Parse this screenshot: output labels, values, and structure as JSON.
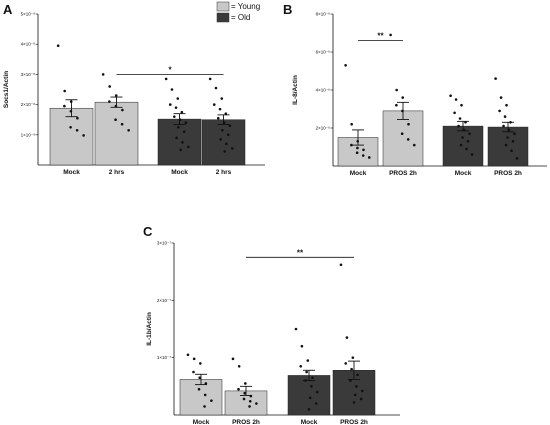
{
  "legend": {
    "items": [
      {
        "label": "= Young",
        "color": "#c8c8c8"
      },
      {
        "label": "= Old",
        "color": "#3a3a3a"
      }
    ]
  },
  "colors": {
    "young": "#c8c8c8",
    "old": "#3a3a3a",
    "dots": "#111111"
  },
  "chart_data": [
    {
      "panel": "A",
      "type": "bar",
      "ylabel": "Socs1/Actin",
      "categories": [
        "Mock",
        "2 hrs",
        "Mock",
        "2 hrs"
      ],
      "groups": [
        "Young",
        "Young",
        "Old",
        "Old"
      ],
      "ylim": [
        0,
        5e-08
      ],
      "yticks": [
        {
          "value": 1e-08,
          "label": "1×10⁻⁸"
        },
        {
          "value": 2e-08,
          "label": "2×10⁻⁸"
        },
        {
          "value": 3e-08,
          "label": "3×10⁻⁸"
        },
        {
          "value": 4e-08,
          "label": "4×10⁻⁸"
        },
        {
          "value": 5e-08,
          "label": "5×10⁻⁸"
        }
      ],
      "values": [
        1.88e-08,
        2.08e-08,
        1.52e-08,
        1.5e-08
      ],
      "errors": [
        2.8e-09,
        1.7e-09,
        1.8e-09,
        1.6e-09
      ],
      "points": [
        [
          3.95e-08,
          2.45e-08,
          2.1e-08,
          1.95e-08,
          1.78e-08,
          1.55e-08,
          1.25e-08,
          1.15e-08,
          9.8e-09
        ],
        [
          3e-08,
          2.6e-08,
          2.3e-08,
          2.1e-08,
          1.95e-08,
          1.82e-08,
          1.5e-08,
          1.35e-08,
          1.15e-08
        ],
        [
          2.85e-08,
          2.5e-08,
          2.2e-08,
          2e-08,
          1.9e-08,
          1.75e-08,
          1.6e-08,
          1.5e-08,
          1.4e-08,
          1.25e-08,
          1.1e-08,
          9e-09,
          7.5e-09,
          6e-09,
          5e-09
        ],
        [
          2.85e-08,
          2.55e-08,
          2.2e-08,
          2e-08,
          1.85e-08,
          1.7e-08,
          1.55e-08,
          1.4e-08,
          1.3e-08,
          1.15e-08,
          1e-08,
          8.5e-09,
          7e-09,
          5.5e-09,
          4.5e-09
        ]
      ],
      "significance": {
        "from": 1,
        "to": 3,
        "y": 3e-08,
        "label": "*"
      }
    },
    {
      "panel": "B",
      "type": "bar",
      "ylabel": "IL-8/Actin",
      "categories": [
        "Mock",
        "PROS 2h",
        "Mock",
        "PROS 2h"
      ],
      "groups": [
        "Young",
        "Young",
        "Old",
        "Old"
      ],
      "ylim": [
        0,
        8e-06
      ],
      "yticks": [
        {
          "value": 2e-06,
          "label": "2×10⁻⁶"
        },
        {
          "value": 4e-06,
          "label": "4×10⁻⁶"
        },
        {
          "value": 6e-06,
          "label": "6×10⁻⁶"
        },
        {
          "value": 8e-06,
          "label": "8×10⁻⁶"
        }
      ],
      "values": [
        1.5e-06,
        2.9e-06,
        2.1e-06,
        2.05e-06
      ],
      "errors": [
        4e-07,
        4.5e-07,
        2.5e-07,
        2.5e-07
      ],
      "points": [
        [
          5.3e-06,
          2.2e-06,
          1.3e-06,
          1.1e-06,
          9.5e-07,
          8.5e-07,
          7e-07,
          5.5e-07,
          4.5e-07
        ],
        [
          6.9e-06,
          4e-06,
          3.6e-06,
          3.2e-06,
          2.9e-06,
          2.2e-06,
          1.7e-06,
          1.4e-06,
          1.1e-06
        ],
        [
          3.7e-06,
          3.5e-06,
          3.2e-06,
          2.8e-06,
          2.5e-06,
          2.3e-06,
          2.1e-06,
          1.9e-06,
          1.7e-06,
          1.5e-06,
          1.3e-06,
          1.1e-06,
          9e-07,
          6e-07
        ],
        [
          4.6e-06,
          3.6e-06,
          3.2e-06,
          2.9e-06,
          2.6e-06,
          2.3e-06,
          2.1e-06,
          1.9e-06,
          1.7e-06,
          1.5e-06,
          1.3e-06,
          1.1e-06,
          8e-07,
          4e-07
        ]
      ],
      "significance": {
        "from": 0,
        "to": 1,
        "y": 6.6e-06,
        "label": "**"
      }
    },
    {
      "panel": "C",
      "type": "bar",
      "ylabel": "IL-1b/Actin",
      "categories": [
        "Mock",
        "PROS 2h",
        "Mock",
        "PROS 2h"
      ],
      "groups": [
        "Young",
        "Young",
        "Old",
        "Old"
      ],
      "ylim": [
        0,
        3e-07
      ],
      "yticks": [
        {
          "value": 1e-07,
          "label": "1×10⁻⁷"
        },
        {
          "value": 2e-07,
          "label": "2×10⁻⁷"
        },
        {
          "value": 3e-07,
          "label": "3×10⁻⁷"
        }
      ],
      "values": [
        6.2e-08,
        4.2e-08,
        6.9e-08,
        7.8e-08
      ],
      "errors": [
        9e-09,
        8e-09,
        9e-09,
        1.6e-08
      ],
      "points": [
        [
          1.05e-07,
          9.8e-08,
          9e-08,
          7.5e-08,
          6.5e-08,
          5.5e-08,
          4.5e-08,
          3.5e-08,
          2.5e-08,
          1.5e-08
        ],
        [
          9.8e-08,
          8.5e-08,
          5.5e-08,
          4.5e-08,
          3.8e-08,
          3.3e-08,
          2.8e-08,
          2.4e-08,
          2e-08,
          1.5e-08
        ],
        [
          1.5e-07,
          1.2e-07,
          9.5e-08,
          8.5e-08,
          7.5e-08,
          6.5e-08,
          6e-08,
          5e-08,
          4e-08,
          3e-08,
          2e-08,
          1e-08
        ],
        [
          2.62e-07,
          1.35e-07,
          1e-07,
          9e-08,
          8e-08,
          7e-08,
          6e-08,
          5e-08,
          4.2e-08,
          3.5e-08,
          2.8e-08,
          2.2e-08
        ]
      ],
      "significance": {
        "from": 1,
        "to": 3,
        "y": 2.75e-07,
        "label": "**"
      }
    }
  ]
}
